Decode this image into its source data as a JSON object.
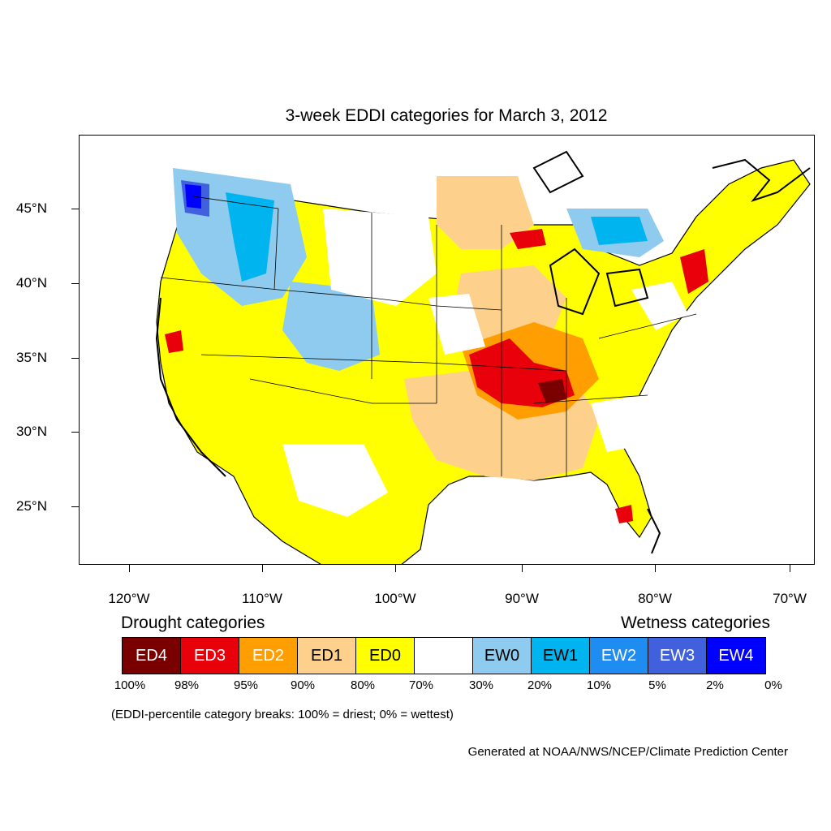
{
  "title": "3-week EDDI categories for March 3, 2012",
  "lat_labels": [
    "45°N",
    "40°N",
    "35°N",
    "30°N",
    "25°N"
  ],
  "lon_labels": [
    "120°W",
    "110°W",
    "100°W",
    "90°W",
    "80°W",
    "70°W"
  ],
  "legend": {
    "drought_title": "Drought categories",
    "wetness_title": "Wetness categories",
    "categories": [
      {
        "label": "ED4",
        "color": "#7a0000",
        "text_color": "#ffffff"
      },
      {
        "label": "ED3",
        "color": "#e8000b",
        "text_color": "#ffffff"
      },
      {
        "label": "ED2",
        "color": "#ff9e00",
        "text_color": "#ffffff"
      },
      {
        "label": "ED1",
        "color": "#fdd18c",
        "text_color": "#000000"
      },
      {
        "label": "ED0",
        "color": "#ffff00",
        "text_color": "#000000"
      },
      {
        "label": "",
        "color": "#ffffff",
        "text_color": "#000000"
      },
      {
        "label": "EW0",
        "color": "#8ecbee",
        "text_color": "#000000"
      },
      {
        "label": "EW1",
        "color": "#00b4f0",
        "text_color": "#000000"
      },
      {
        "label": "EW2",
        "color": "#1e8cf0",
        "text_color": "#ffffff"
      },
      {
        "label": "EW3",
        "color": "#4060dd",
        "text_color": "#ffffff"
      },
      {
        "label": "EW4",
        "color": "#0000ff",
        "text_color": "#ffffff"
      }
    ],
    "percentiles": [
      "100%",
      "98%",
      "95%",
      "90%",
      "80%",
      "70%",
      "30%",
      "20%",
      "10%",
      "5%",
      "2%",
      "0%"
    ]
  },
  "note": "(EDDI-percentile category breaks: 100% = driest; 0% = wettest)",
  "credit": "Generated at NOAA/NWS/NCEP/Climate Prediction Center"
}
